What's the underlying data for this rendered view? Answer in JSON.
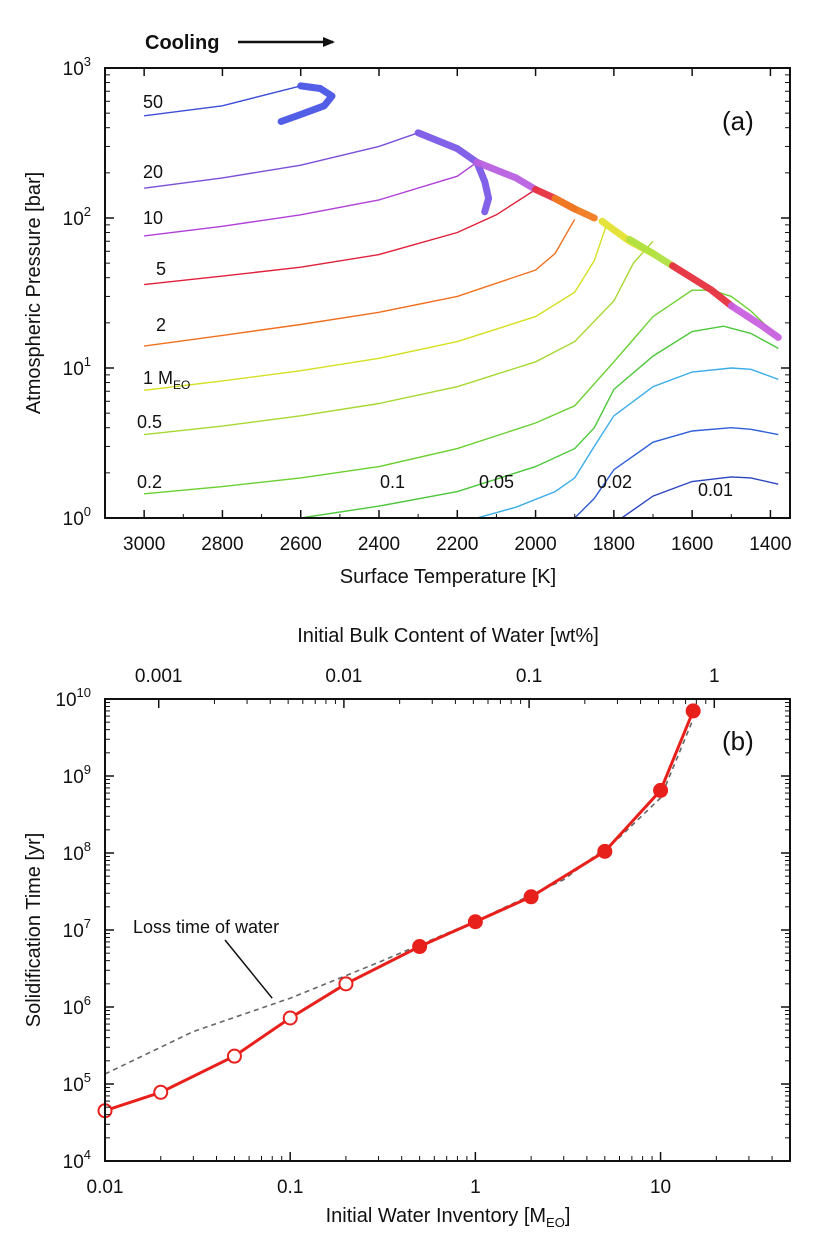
{
  "chart_data": [
    {
      "panel": "(a)",
      "type": "line",
      "xlabel": "Surface Temperature [K]",
      "ylabel": "Atmospheric Pressure [bar]",
      "xlim": [
        3100,
        1350
      ],
      "x_reversed": true,
      "ylim": [
        1,
        1000
      ],
      "yscale": "log",
      "xticks": [
        3000,
        2800,
        2600,
        2400,
        2200,
        2000,
        1800,
        1600,
        1400
      ],
      "yticks": [
        {
          "base": "10",
          "exp": "0",
          "value": 1
        },
        {
          "base": "10",
          "exp": "1",
          "value": 10
        },
        {
          "base": "10",
          "exp": "2",
          "value": 100
        },
        {
          "base": "10",
          "exp": "3",
          "value": 1000
        }
      ],
      "annotation": {
        "text": "Cooling",
        "arrow": "right"
      },
      "grid": false,
      "series": [
        {
          "name": "50",
          "color": "#3d4fd6",
          "points": [
            [
              3000,
              480
            ],
            [
              2800,
              560
            ],
            [
              2600,
              760
            ]
          ]
        },
        {
          "name": "20",
          "color": "#7a4fd8",
          "points": [
            [
              3000,
              158
            ],
            [
              2800,
              185
            ],
            [
              2600,
              225
            ],
            [
              2400,
              300
            ],
            [
              2300,
              370
            ]
          ]
        },
        {
          "name": "10",
          "color": "#b040d8",
          "points": [
            [
              3000,
              76
            ],
            [
              2800,
              88
            ],
            [
              2600,
              105
            ],
            [
              2400,
              132
            ],
            [
              2200,
              190
            ],
            [
              2150,
              235
            ]
          ]
        },
        {
          "name": "5",
          "color": "#e0203a",
          "points": [
            [
              3000,
              36
            ],
            [
              2800,
              41
            ],
            [
              2600,
              47
            ],
            [
              2400,
              57
            ],
            [
              2200,
              80
            ],
            [
              2100,
              105
            ],
            [
              2000,
              155
            ]
          ]
        },
        {
          "name": "2",
          "color": "#f07020",
          "points": [
            [
              3000,
              14
            ],
            [
              2800,
              16.5
            ],
            [
              2600,
              19.5
            ],
            [
              2400,
              23.5
            ],
            [
              2200,
              30
            ],
            [
              2000,
              45
            ],
            [
              1950,
              58
            ],
            [
              1900,
              98
            ]
          ]
        },
        {
          "name": "1",
          "color": "#d4e020",
          "points": [
            [
              3000,
              7.1
            ],
            [
              2800,
              8.2
            ],
            [
              2600,
              9.6
            ],
            [
              2400,
              11.6
            ],
            [
              2200,
              15
            ],
            [
              2000,
              22
            ],
            [
              1900,
              32
            ],
            [
              1850,
              52
            ],
            [
              1820,
              88
            ]
          ]
        },
        {
          "name": "0.5",
          "color": "#a6d830",
          "points": [
            [
              3000,
              3.6
            ],
            [
              2800,
              4.1
            ],
            [
              2600,
              4.8
            ],
            [
              2400,
              5.8
            ],
            [
              2200,
              7.5
            ],
            [
              2000,
              11
            ],
            [
              1900,
              15
            ],
            [
              1800,
              28
            ],
            [
              1750,
              50
            ],
            [
              1700,
              70
            ]
          ]
        },
        {
          "name": "0.2",
          "color": "#6ad030",
          "points": [
            [
              3000,
              1.45
            ],
            [
              2800,
              1.62
            ],
            [
              2600,
              1.85
            ],
            [
              2400,
              2.2
            ],
            [
              2200,
              2.9
            ],
            [
              2000,
              4.3
            ],
            [
              1900,
              5.6
            ],
            [
              1800,
              11
            ],
            [
              1700,
              22
            ],
            [
              1600,
              33
            ],
            [
              1550,
              33
            ],
            [
              1500,
              30
            ],
            [
              1450,
              24
            ],
            [
              1380,
              16
            ]
          ]
        },
        {
          "name": "0.1",
          "color": "#4cc83a",
          "points": [
            [
              2600,
              1.0
            ],
            [
              2400,
              1.2
            ],
            [
              2200,
              1.5
            ],
            [
              2000,
              2.2
            ],
            [
              1900,
              2.9
            ],
            [
              1850,
              4.0
            ],
            [
              1800,
              7.2
            ],
            [
              1700,
              12
            ],
            [
              1600,
              17.5
            ],
            [
              1520,
              19
            ],
            [
              1450,
              17
            ],
            [
              1380,
              13.5
            ]
          ]
        },
        {
          "name": "0.05",
          "color": "#3aace8",
          "points": [
            [
              2150,
              1.0
            ],
            [
              2050,
              1.18
            ],
            [
              1950,
              1.5
            ],
            [
              1900,
              1.85
            ],
            [
              1850,
              3.0
            ],
            [
              1800,
              4.8
            ],
            [
              1700,
              7.5
            ],
            [
              1600,
              9.4
            ],
            [
              1500,
              10.0
            ],
            [
              1450,
              9.8
            ],
            [
              1380,
              8.4
            ]
          ]
        },
        {
          "name": "0.02",
          "color": "#2f5fd6",
          "points": [
            [
              1900,
              1.0
            ],
            [
              1850,
              1.35
            ],
            [
              1800,
              2.1
            ],
            [
              1700,
              3.2
            ],
            [
              1600,
              3.8
            ],
            [
              1500,
              4.0
            ],
            [
              1450,
              3.9
            ],
            [
              1380,
              3.6
            ]
          ]
        },
        {
          "name": "0.01",
          "color": "#2a45c0",
          "points": [
            [
              1780,
              1.0
            ],
            [
              1700,
              1.4
            ],
            [
              1600,
              1.75
            ],
            [
              1500,
              1.88
            ],
            [
              1450,
              1.85
            ],
            [
              1380,
              1.68
            ]
          ]
        }
      ],
      "curve_labels": [
        {
          "text": "50",
          "series": "50"
        },
        {
          "text": "20",
          "series": "20"
        },
        {
          "text": "10",
          "series": "10"
        },
        {
          "text": "5",
          "series": "5"
        },
        {
          "text": "2",
          "series": "2"
        },
        {
          "text": "1 M",
          "sub": "EO",
          "series": "1"
        },
        {
          "text": "0.5",
          "series": "0.5"
        },
        {
          "text": "0.2",
          "series": "0.2"
        },
        {
          "text": "0.1",
          "series": "0.1"
        },
        {
          "text": "0.05",
          "series": "0.05"
        },
        {
          "text": "0.02",
          "series": "0.02"
        },
        {
          "text": "0.01",
          "series": "0.01"
        }
      ],
      "thick_tracks": [
        {
          "color": "#4a55e6",
          "points": [
            [
              2600,
              760
            ],
            [
              2550,
              730
            ],
            [
              2520,
              650
            ],
            [
              2540,
              560
            ],
            [
              2600,
              490
            ],
            [
              2650,
              440
            ]
          ]
        },
        {
          "color": "#7a5ae8",
          "points": [
            [
              2300,
              370
            ],
            [
              2200,
              290
            ],
            [
              2150,
              235
            ],
            [
              2130,
              175
            ],
            [
              2120,
              135
            ],
            [
              2130,
              110
            ]
          ]
        },
        {
          "color": "#b860e0",
          "points": [
            [
              2150,
              235
            ],
            [
              2050,
              185
            ],
            [
              2000,
              155
            ]
          ]
        },
        {
          "color": "#e63040",
          "points": [
            [
              2000,
              155
            ],
            [
              1950,
              135
            ],
            [
              1900,
              115
            ]
          ]
        },
        {
          "color": "#f07a20",
          "points": [
            [
              1950,
              135
            ],
            [
              1900,
              115
            ],
            [
              1850,
              100
            ]
          ]
        },
        {
          "color": "#e3e030",
          "points": [
            [
              1830,
              95
            ],
            [
              1760,
              70
            ],
            [
              1700,
              58
            ]
          ]
        },
        {
          "color": "#b0e040",
          "points": [
            [
              1760,
              72
            ],
            [
              1700,
              58
            ],
            [
              1650,
              48
            ]
          ]
        },
        {
          "color": "#e63040",
          "points": [
            [
              1650,
              48
            ],
            [
              1550,
              33
            ],
            [
              1500,
              26
            ]
          ]
        },
        {
          "color": "#c860e0",
          "points": [
            [
              1500,
              26
            ],
            [
              1420,
              19
            ],
            [
              1380,
              16
            ]
          ]
        }
      ]
    },
    {
      "panel": "(b)",
      "type": "line",
      "xlabel": "Initial Water Inventory [M",
      "xlabel_sub": "EO",
      "xlabel_end": "]",
      "ylabel": "Solidification Time [yr]",
      "top_xlabel": "Initial Bulk Content of Water [wt%]",
      "xscale": "log",
      "yscale": "log",
      "xlim": [
        0.01,
        50
      ],
      "ylim": [
        10000,
        10000000000
      ],
      "xticks": [
        {
          "label": "0.01",
          "value": 0.01
        },
        {
          "label": "0.1",
          "value": 0.1
        },
        {
          "label": "1",
          "value": 1
        },
        {
          "label": "10",
          "value": 10
        }
      ],
      "top_xticks": [
        {
          "label": "0.001",
          "value": 0.001
        },
        {
          "label": "0.01",
          "value": 0.01
        },
        {
          "label": "0.1",
          "value": 0.1
        },
        {
          "label": "1",
          "value": 1
        }
      ],
      "yticks": [
        {
          "base": "10",
          "exp": "4",
          "value": 10000
        },
        {
          "base": "10",
          "exp": "5",
          "value": 100000
        },
        {
          "base": "10",
          "exp": "6",
          "value": 1000000
        },
        {
          "base": "10",
          "exp": "7",
          "value": 10000000
        },
        {
          "base": "10",
          "exp": "8",
          "value": 100000000
        },
        {
          "base": "10",
          "exp": "9",
          "value": 1000000000
        },
        {
          "base": "10",
          "exp": "10",
          "value": 10000000000
        }
      ],
      "series": [
        {
          "name": "Solidification time",
          "color": "#e8201c",
          "points": [
            {
              "x": 0.01,
              "y": 45000,
              "filled": false
            },
            {
              "x": 0.02,
              "y": 78000,
              "filled": false
            },
            {
              "x": 0.05,
              "y": 230000,
              "filled": false
            },
            {
              "x": 0.1,
              "y": 720000,
              "filled": false
            },
            {
              "x": 0.2,
              "y": 2000000,
              "filled": false
            },
            {
              "x": 0.5,
              "y": 6100000,
              "filled": true
            },
            {
              "x": 1,
              "y": 12800000,
              "filled": true
            },
            {
              "x": 2,
              "y": 27000000,
              "filled": true
            },
            {
              "x": 5,
              "y": 105000000,
              "filled": true
            },
            {
              "x": 10,
              "y": 650000000,
              "filled": true
            },
            {
              "x": 15,
              "y": 7000000000,
              "filled": true
            }
          ]
        },
        {
          "name": "Loss time of water",
          "color": "#666666",
          "dashed": true,
          "points": [
            [
              0.01,
              135000
            ],
            [
              0.03,
              480000
            ],
            [
              0.1,
              1300000
            ],
            [
              0.3,
              3800000
            ],
            [
              1,
              13000000
            ],
            [
              3,
              45000000
            ],
            [
              6,
              160000000
            ],
            [
              10,
              520000000
            ],
            [
              15,
              5500000000
            ]
          ]
        }
      ],
      "annotation": {
        "text": "Loss time of water",
        "target": [
          0.08,
          1300000
        ]
      }
    }
  ]
}
